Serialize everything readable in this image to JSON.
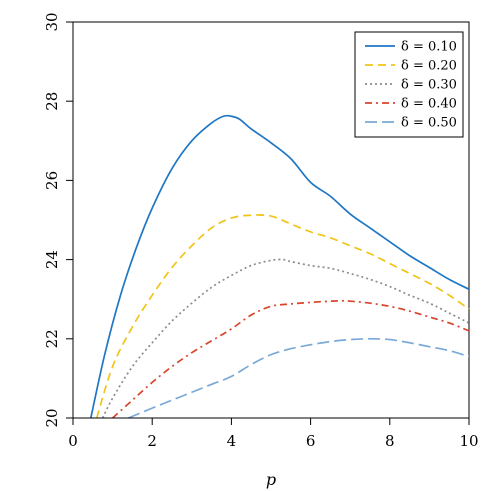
{
  "chart_data": {
    "type": "line",
    "xlabel": "p",
    "ylabel": "",
    "xlim": [
      0,
      10
    ],
    "ylim": [
      20,
      30
    ],
    "x_ticks": [
      0,
      2,
      4,
      6,
      8,
      10
    ],
    "y_ticks": [
      20,
      22,
      24,
      26,
      28,
      30
    ],
    "grid": false,
    "legend_position": "top-right",
    "series": [
      {
        "name": "δ = 0.10",
        "color": "#1f77c4",
        "dash": "solid",
        "x": [
          0.45,
          0.8,
          1.2,
          1.6,
          2.0,
          2.5,
          3.0,
          3.5,
          3.8,
          4.0,
          4.2,
          4.5,
          5.0,
          5.5,
          6.0,
          6.5,
          7.0,
          7.5,
          8.0,
          8.5,
          9.0,
          9.5,
          10.0
        ],
        "y": [
          20.0,
          21.6,
          23.1,
          24.3,
          25.3,
          26.3,
          27.0,
          27.45,
          27.62,
          27.62,
          27.55,
          27.3,
          26.95,
          26.55,
          25.95,
          25.6,
          25.15,
          24.8,
          24.45,
          24.1,
          23.8,
          23.5,
          23.25
        ]
      },
      {
        "name": "δ = 0.20",
        "color": "#f0c419",
        "dash": "dashed",
        "x": [
          0.6,
          1.0,
          1.5,
          2.0,
          2.5,
          3.0,
          3.5,
          4.0,
          4.5,
          5.0,
          5.5,
          6.0,
          6.5,
          7.0,
          7.5,
          8.0,
          8.5,
          9.0,
          9.5,
          10.0
        ],
        "y": [
          20.0,
          21.3,
          22.3,
          23.1,
          23.8,
          24.35,
          24.8,
          25.05,
          25.12,
          25.1,
          24.9,
          24.7,
          24.55,
          24.35,
          24.15,
          23.9,
          23.65,
          23.4,
          23.1,
          22.75
        ]
      },
      {
        "name": "δ = 0.30",
        "color": "#8c8c8c",
        "dash": "dotted",
        "x": [
          0.75,
          1.0,
          1.5,
          2.0,
          2.5,
          3.0,
          3.5,
          4.0,
          4.5,
          5.0,
          5.3,
          5.5,
          6.0,
          6.5,
          7.0,
          7.5,
          8.0,
          8.5,
          9.0,
          9.5,
          10.0
        ],
        "y": [
          20.0,
          20.5,
          21.3,
          21.9,
          22.45,
          22.9,
          23.3,
          23.6,
          23.85,
          23.98,
          24.0,
          23.95,
          23.85,
          23.78,
          23.65,
          23.5,
          23.32,
          23.1,
          22.9,
          22.65,
          22.4
        ]
      },
      {
        "name": "δ = 0.40",
        "color": "#d9452b",
        "dash": "dashdot",
        "x": [
          1.0,
          1.5,
          2.0,
          2.5,
          3.0,
          3.5,
          4.0,
          4.5,
          5.0,
          5.5,
          6.0,
          6.5,
          6.8,
          7.0,
          7.5,
          8.0,
          8.5,
          9.0,
          9.5,
          10.0
        ],
        "y": [
          20.0,
          20.45,
          20.9,
          21.3,
          21.65,
          21.95,
          22.25,
          22.6,
          22.82,
          22.88,
          22.92,
          22.95,
          22.96,
          22.95,
          22.9,
          22.82,
          22.7,
          22.55,
          22.4,
          22.2
        ]
      },
      {
        "name": "δ = 0.50",
        "color": "#7aa9d8",
        "dash": "longdash",
        "x": [
          1.4,
          2.0,
          2.5,
          3.0,
          3.5,
          4.0,
          4.5,
          5.0,
          5.5,
          6.0,
          6.5,
          7.0,
          7.5,
          8.0,
          8.5,
          9.0,
          9.5,
          10.0
        ],
        "y": [
          20.0,
          20.25,
          20.45,
          20.65,
          20.85,
          21.05,
          21.35,
          21.6,
          21.75,
          21.85,
          21.93,
          21.98,
          22.0,
          21.98,
          21.9,
          21.8,
          21.7,
          21.55
        ]
      }
    ]
  }
}
